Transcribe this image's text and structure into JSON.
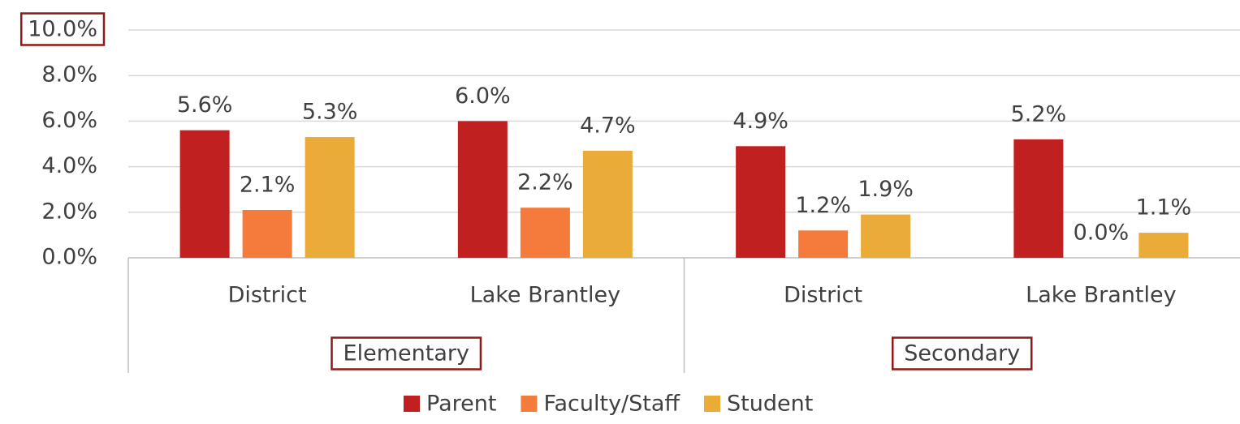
{
  "chart_data": {
    "type": "bar",
    "categories": [
      "District",
      "Lake Brantley",
      "District",
      "Lake Brantley"
    ],
    "group_labels": [
      "Elementary",
      "Secondary"
    ],
    "series": [
      {
        "name": "Parent",
        "color": "#c0201f",
        "values": [
          5.6,
          6.0,
          4.9,
          5.2
        ],
        "value_labels": [
          "5.6%",
          "6.0%",
          "4.9%",
          "5.2%"
        ]
      },
      {
        "name": "Faculty/Staff",
        "color": "#f47b3b",
        "values": [
          2.1,
          2.2,
          1.2,
          0.0
        ],
        "value_labels": [
          "2.1%",
          "2.2%",
          "1.2%",
          "0.0%"
        ]
      },
      {
        "name": "Student",
        "color": "#eaab38",
        "values": [
          5.3,
          4.7,
          1.9,
          1.1
        ],
        "value_labels": [
          "5.3%",
          "4.7%",
          "1.9%",
          "1.1%"
        ]
      }
    ],
    "ylim": [
      0,
      10
    ],
    "yticks": [
      {
        "value": 0,
        "label": "0.0%"
      },
      {
        "value": 2,
        "label": "2.0%"
      },
      {
        "value": 4,
        "label": "4.0%"
      },
      {
        "value": 6,
        "label": "6.0%"
      },
      {
        "value": 8,
        "label": "8.0%"
      },
      {
        "value": 10,
        "label": "10.0%"
      }
    ],
    "grid": true,
    "legend": "bottom"
  }
}
